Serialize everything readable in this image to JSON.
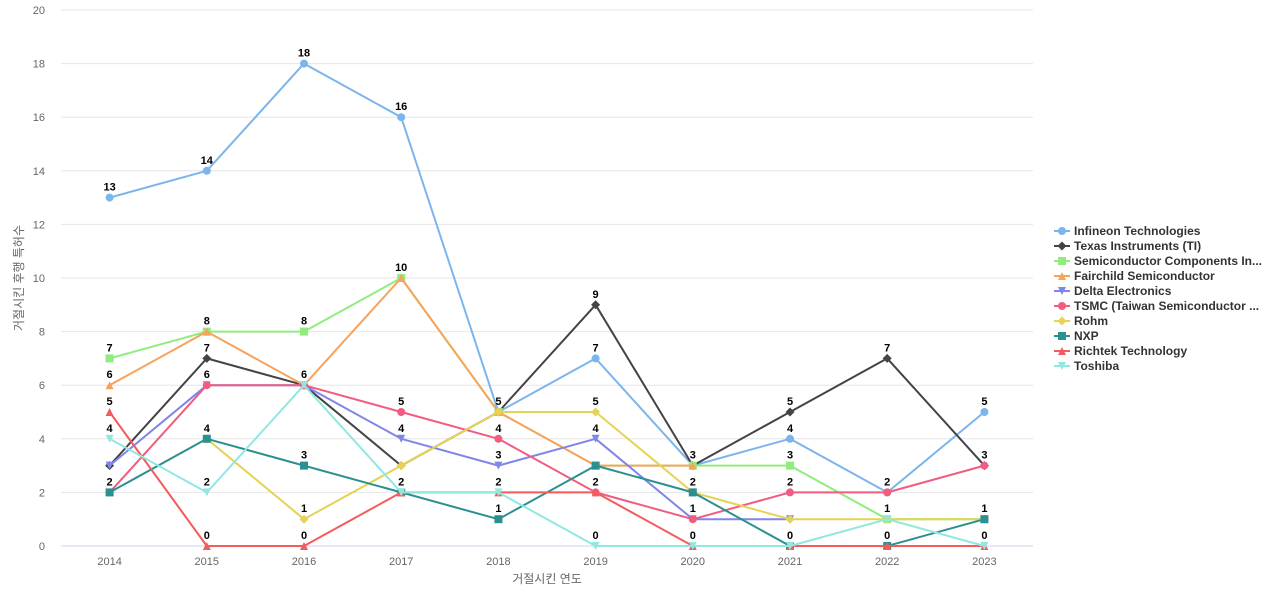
{
  "chart_data": {
    "type": "line",
    "title": "",
    "xlabel": "거절시킨 연도",
    "ylabel": "거절시킨 후행 특허수",
    "categories": [
      "2014",
      "2015",
      "2016",
      "2017",
      "2018",
      "2019",
      "2020",
      "2021",
      "2022",
      "2023"
    ],
    "ylim": [
      0,
      20
    ],
    "yticks": [
      0,
      2,
      4,
      6,
      8,
      10,
      12,
      14,
      16,
      18,
      20
    ],
    "grid": true,
    "legend_position": "right",
    "series": [
      {
        "name": "Infineon Technologies",
        "display_name": "Infineon Technologies",
        "color": "#7cb5ec",
        "marker": "circle",
        "values": [
          13,
          14,
          18,
          16,
          5,
          7,
          3,
          4,
          2,
          5
        ],
        "labels": [
          13,
          14,
          18,
          16,
          null,
          7,
          null,
          4,
          null,
          5
        ]
      },
      {
        "name": "Texas Instruments (TI)",
        "display_name": "Texas Instruments (TI)",
        "color": "#434348",
        "marker": "diamond",
        "values": [
          3,
          7,
          6,
          3,
          5,
          9,
          3,
          5,
          7,
          3
        ],
        "labels": [
          null,
          7,
          6,
          null,
          null,
          9,
          3,
          5,
          7,
          null
        ]
      },
      {
        "name": "Semiconductor Components Industries",
        "display_name": "Semiconductor Components In...",
        "color": "#90ed7d",
        "marker": "square",
        "values": [
          7,
          8,
          8,
          10,
          5,
          3,
          3,
          3,
          1,
          1
        ],
        "labels": [
          7,
          8,
          8,
          null,
          null,
          null,
          null,
          3,
          null,
          null
        ]
      },
      {
        "name": "Fairchild Semiconductor",
        "display_name": "Fairchild Semiconductor",
        "color": "#f7a35c",
        "marker": "triangle",
        "values": [
          6,
          8,
          6,
          10,
          5,
          3,
          3,
          null,
          null,
          null
        ],
        "labels": [
          6,
          null,
          null,
          10,
          null,
          null,
          null,
          null,
          null,
          null
        ]
      },
      {
        "name": "Delta Electronics",
        "display_name": "Delta Electronics",
        "color": "#8085e9",
        "marker": "triangle-down",
        "values": [
          3,
          6,
          6,
          4,
          3,
          4,
          1,
          1,
          null,
          null
        ],
        "labels": [
          null,
          6,
          null,
          4,
          3,
          4,
          null,
          null,
          null,
          null
        ]
      },
      {
        "name": "TSMC (Taiwan Semiconductor Manufacturing)",
        "display_name": "TSMC (Taiwan Semiconductor ...",
        "color": "#f15c80",
        "marker": "circle",
        "values": [
          2,
          6,
          6,
          5,
          4,
          2,
          1,
          2,
          2,
          3
        ],
        "labels": [
          null,
          null,
          null,
          5,
          4,
          null,
          1,
          2,
          2,
          3
        ]
      },
      {
        "name": "Rohm",
        "display_name": "Rohm",
        "color": "#e4d354",
        "marker": "diamond",
        "values": [
          null,
          4,
          1,
          3,
          5,
          5,
          2,
          1,
          1,
          1
        ],
        "labels": [
          null,
          null,
          1,
          null,
          5,
          5,
          null,
          null,
          null,
          null
        ]
      },
      {
        "name": "NXP",
        "display_name": "NXP",
        "color": "#2b908f",
        "marker": "square",
        "values": [
          2,
          4,
          3,
          2,
          1,
          3,
          2,
          0,
          0,
          1
        ],
        "labels": [
          2,
          4,
          3,
          null,
          1,
          null,
          2,
          null,
          null,
          1
        ]
      },
      {
        "name": "Richtek Technology",
        "display_name": "Richtek Technology",
        "color": "#f45b5b",
        "marker": "triangle",
        "values": [
          5,
          0,
          0,
          2,
          2,
          2,
          0,
          0,
          0,
          0
        ],
        "labels": [
          5,
          0,
          0,
          2,
          2,
          2,
          0,
          0,
          0,
          0
        ]
      },
      {
        "name": "Toshiba",
        "display_name": "Toshiba",
        "color": "#91e8e1",
        "marker": "triangle-down",
        "values": [
          4,
          2,
          6,
          2,
          2,
          0,
          0,
          0,
          1,
          0
        ],
        "labels": [
          4,
          2,
          null,
          null,
          null,
          0,
          null,
          null,
          1,
          null
        ]
      }
    ]
  }
}
